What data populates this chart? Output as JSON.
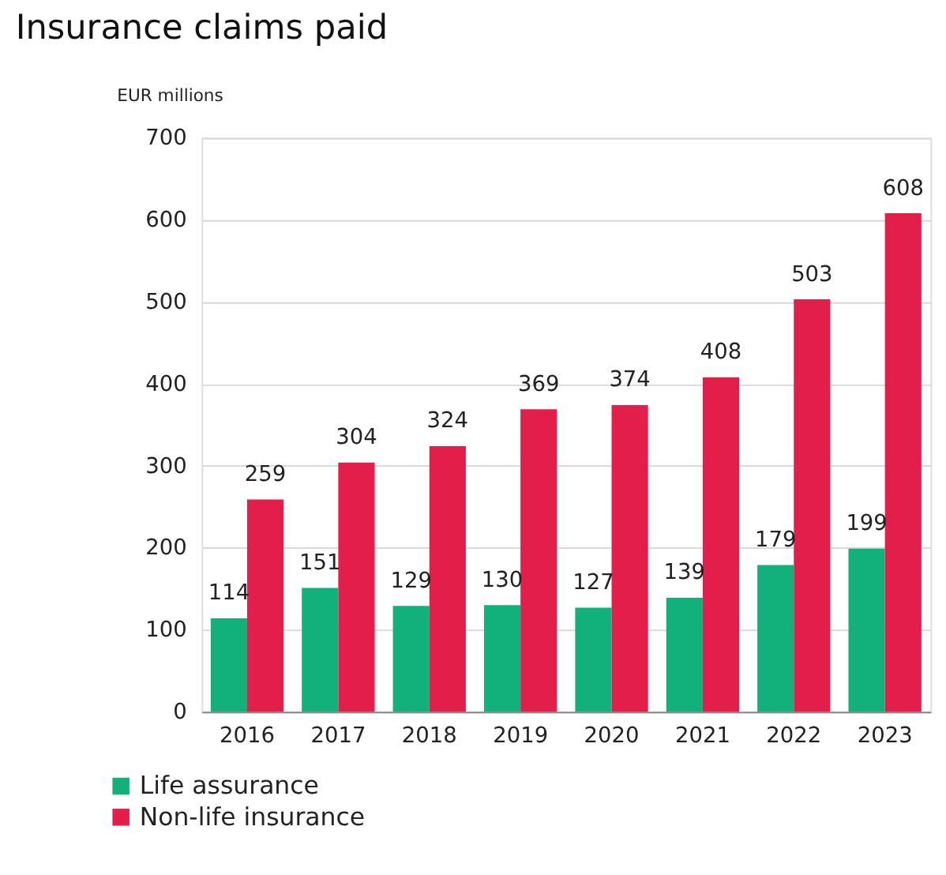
{
  "chart_data": {
    "type": "bar",
    "title": "Insurance claims paid",
    "ylabel": "EUR millions",
    "categories": [
      "2016",
      "2017",
      "2018",
      "2019",
      "2020",
      "2021",
      "2022",
      "2023"
    ],
    "series": [
      {
        "name": "Life assurance",
        "color": "#12b07a",
        "values": [
          114,
          151,
          129,
          130,
          127,
          139,
          179,
          199
        ]
      },
      {
        "name": "Non-life insurance",
        "color": "#e31e4b",
        "values": [
          259,
          304,
          324,
          369,
          374,
          408,
          503,
          608
        ]
      }
    ],
    "ylim": [
      0,
      700
    ],
    "yticks": [
      0,
      100,
      200,
      300,
      400,
      500,
      600,
      700
    ],
    "grid": "y",
    "legend": "bottom left",
    "data_labels": true
  }
}
